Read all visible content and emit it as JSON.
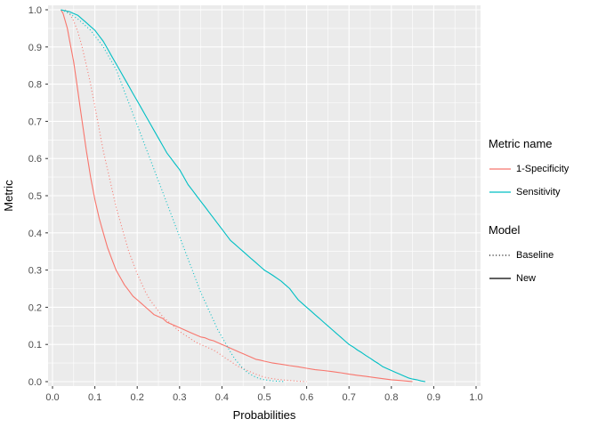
{
  "chart_data": {
    "type": "line",
    "title": "",
    "xlabel": "Probabilities",
    "ylabel": "Metric",
    "xlim": [
      0.0,
      1.0
    ],
    "ylim": [
      0.0,
      1.0
    ],
    "x_ticks": [
      "0.0",
      "0.1",
      "0.2",
      "0.3",
      "0.4",
      "0.5",
      "0.6",
      "0.7",
      "0.8",
      "0.9",
      "1.0"
    ],
    "y_ticks": [
      "0.0",
      "0.1",
      "0.2",
      "0.3",
      "0.4",
      "0.5",
      "0.6",
      "0.7",
      "0.8",
      "0.9",
      "1.0"
    ],
    "minor_ticks": [
      0.05,
      0.15,
      0.25,
      0.35,
      0.45,
      0.55,
      0.65,
      0.75,
      0.85,
      0.95
    ],
    "grid": true,
    "panel_bg": "#EBEBEB",
    "grid_color": "#FFFFFF",
    "tick_label_color": "#4D4D4D",
    "tick_mark_color": "#333333",
    "legend": {
      "position": "right",
      "groups": [
        {
          "title": "Metric name",
          "entries": [
            {
              "label": "1-Specificity",
              "color": "#F8766D",
              "dash": "solid",
              "dash_array": "none"
            },
            {
              "label": "Sensitivity",
              "color": "#00BFC4",
              "dash": "solid",
              "dash_array": "none"
            }
          ]
        },
        {
          "title": "Model",
          "entries": [
            {
              "label": "Baseline",
              "color": "#000000",
              "dash": "dotted",
              "dash_array": "1,2.6"
            },
            {
              "label": "New",
              "color": "#000000",
              "dash": "solid",
              "dash_array": "none"
            }
          ]
        }
      ]
    },
    "series": [
      {
        "name": "1-Specificity-New",
        "metric": "1-Specificity",
        "model": "New",
        "color": "#F8766D",
        "dash": "solid",
        "points": [
          [
            0.02,
            1.0
          ],
          [
            0.025,
            0.99
          ],
          [
            0.03,
            0.97
          ],
          [
            0.035,
            0.95
          ],
          [
            0.04,
            0.92
          ],
          [
            0.045,
            0.89
          ],
          [
            0.05,
            0.86
          ],
          [
            0.055,
            0.82
          ],
          [
            0.06,
            0.78
          ],
          [
            0.065,
            0.74
          ],
          [
            0.07,
            0.7
          ],
          [
            0.075,
            0.66
          ],
          [
            0.08,
            0.62
          ],
          [
            0.085,
            0.585
          ],
          [
            0.09,
            0.55
          ],
          [
            0.095,
            0.52
          ],
          [
            0.1,
            0.49
          ],
          [
            0.105,
            0.465
          ],
          [
            0.11,
            0.44
          ],
          [
            0.115,
            0.42
          ],
          [
            0.12,
            0.4
          ],
          [
            0.125,
            0.38
          ],
          [
            0.13,
            0.36
          ],
          [
            0.135,
            0.345
          ],
          [
            0.14,
            0.33
          ],
          [
            0.15,
            0.3
          ],
          [
            0.16,
            0.28
          ],
          [
            0.17,
            0.26
          ],
          [
            0.18,
            0.245
          ],
          [
            0.19,
            0.23
          ],
          [
            0.2,
            0.22
          ],
          [
            0.21,
            0.21
          ],
          [
            0.22,
            0.2
          ],
          [
            0.23,
            0.19
          ],
          [
            0.24,
            0.18
          ],
          [
            0.25,
            0.175
          ],
          [
            0.26,
            0.17
          ],
          [
            0.27,
            0.16
          ],
          [
            0.28,
            0.155
          ],
          [
            0.29,
            0.15
          ],
          [
            0.3,
            0.145
          ],
          [
            0.31,
            0.14
          ],
          [
            0.32,
            0.135
          ],
          [
            0.33,
            0.13
          ],
          [
            0.34,
            0.125
          ],
          [
            0.35,
            0.12
          ],
          [
            0.36,
            0.118
          ],
          [
            0.37,
            0.113
          ],
          [
            0.38,
            0.11
          ],
          [
            0.39,
            0.105
          ],
          [
            0.4,
            0.1
          ],
          [
            0.41,
            0.095
          ],
          [
            0.42,
            0.09
          ],
          [
            0.43,
            0.085
          ],
          [
            0.44,
            0.08
          ],
          [
            0.45,
            0.075
          ],
          [
            0.46,
            0.07
          ],
          [
            0.47,
            0.065
          ],
          [
            0.48,
            0.06
          ],
          [
            0.49,
            0.058
          ],
          [
            0.5,
            0.055
          ],
          [
            0.52,
            0.05
          ],
          [
            0.54,
            0.047
          ],
          [
            0.56,
            0.043
          ],
          [
            0.58,
            0.04
          ],
          [
            0.6,
            0.036
          ],
          [
            0.62,
            0.032
          ],
          [
            0.64,
            0.03
          ],
          [
            0.66,
            0.027
          ],
          [
            0.68,
            0.024
          ],
          [
            0.7,
            0.02
          ],
          [
            0.72,
            0.017
          ],
          [
            0.74,
            0.014
          ],
          [
            0.76,
            0.011
          ],
          [
            0.78,
            0.008
          ],
          [
            0.8,
            0.005
          ],
          [
            0.82,
            0.003
          ],
          [
            0.84,
            0.001
          ],
          [
            0.85,
            0.0
          ]
        ]
      },
      {
        "name": "1-Specificity-Baseline",
        "metric": "1-Specificity",
        "model": "Baseline",
        "color": "#F8766D",
        "dash": "dotted",
        "points": [
          [
            0.03,
            1.0
          ],
          [
            0.04,
            0.99
          ],
          [
            0.05,
            0.97
          ],
          [
            0.06,
            0.94
          ],
          [
            0.07,
            0.9
          ],
          [
            0.075,
            0.875
          ],
          [
            0.08,
            0.85
          ],
          [
            0.085,
            0.825
          ],
          [
            0.09,
            0.8
          ],
          [
            0.095,
            0.77
          ],
          [
            0.1,
            0.74
          ],
          [
            0.105,
            0.71
          ],
          [
            0.11,
            0.68
          ],
          [
            0.115,
            0.65
          ],
          [
            0.12,
            0.62
          ],
          [
            0.125,
            0.595
          ],
          [
            0.13,
            0.57
          ],
          [
            0.135,
            0.545
          ],
          [
            0.14,
            0.52
          ],
          [
            0.145,
            0.495
          ],
          [
            0.15,
            0.47
          ],
          [
            0.155,
            0.45
          ],
          [
            0.16,
            0.43
          ],
          [
            0.165,
            0.41
          ],
          [
            0.17,
            0.39
          ],
          [
            0.175,
            0.37
          ],
          [
            0.18,
            0.35
          ],
          [
            0.185,
            0.335
          ],
          [
            0.19,
            0.32
          ],
          [
            0.195,
            0.305
          ],
          [
            0.2,
            0.29
          ],
          [
            0.21,
            0.265
          ],
          [
            0.22,
            0.24
          ],
          [
            0.23,
            0.22
          ],
          [
            0.24,
            0.205
          ],
          [
            0.25,
            0.19
          ],
          [
            0.26,
            0.175
          ],
          [
            0.27,
            0.165
          ],
          [
            0.28,
            0.155
          ],
          [
            0.29,
            0.145
          ],
          [
            0.3,
            0.135
          ],
          [
            0.31,
            0.127
          ],
          [
            0.32,
            0.12
          ],
          [
            0.33,
            0.112
          ],
          [
            0.34,
            0.105
          ],
          [
            0.35,
            0.1
          ],
          [
            0.36,
            0.095
          ],
          [
            0.37,
            0.09
          ],
          [
            0.38,
            0.085
          ],
          [
            0.39,
            0.078
          ],
          [
            0.4,
            0.07
          ],
          [
            0.41,
            0.062
          ],
          [
            0.42,
            0.055
          ],
          [
            0.43,
            0.047
          ],
          [
            0.44,
            0.04
          ],
          [
            0.45,
            0.035
          ],
          [
            0.46,
            0.03
          ],
          [
            0.47,
            0.025
          ],
          [
            0.48,
            0.02
          ],
          [
            0.49,
            0.016
          ],
          [
            0.5,
            0.012
          ],
          [
            0.52,
            0.008
          ],
          [
            0.54,
            0.005
          ],
          [
            0.56,
            0.003
          ],
          [
            0.58,
            0.001
          ],
          [
            0.6,
            0.0
          ]
        ]
      },
      {
        "name": "Sensitivity-New",
        "metric": "Sensitivity",
        "model": "New",
        "color": "#00BFC4",
        "dash": "solid",
        "points": [
          [
            0.02,
            1.0
          ],
          [
            0.04,
            0.995
          ],
          [
            0.05,
            0.99
          ],
          [
            0.06,
            0.985
          ],
          [
            0.07,
            0.975
          ],
          [
            0.08,
            0.965
          ],
          [
            0.09,
            0.955
          ],
          [
            0.1,
            0.945
          ],
          [
            0.11,
            0.93
          ],
          [
            0.12,
            0.915
          ],
          [
            0.13,
            0.895
          ],
          [
            0.14,
            0.875
          ],
          [
            0.15,
            0.855
          ],
          [
            0.16,
            0.835
          ],
          [
            0.17,
            0.815
          ],
          [
            0.18,
            0.795
          ],
          [
            0.19,
            0.775
          ],
          [
            0.2,
            0.755
          ],
          [
            0.21,
            0.735
          ],
          [
            0.22,
            0.715
          ],
          [
            0.23,
            0.695
          ],
          [
            0.24,
            0.675
          ],
          [
            0.25,
            0.655
          ],
          [
            0.26,
            0.635
          ],
          [
            0.27,
            0.615
          ],
          [
            0.28,
            0.6
          ],
          [
            0.29,
            0.585
          ],
          [
            0.3,
            0.57
          ],
          [
            0.31,
            0.55
          ],
          [
            0.32,
            0.53
          ],
          [
            0.33,
            0.515
          ],
          [
            0.34,
            0.5
          ],
          [
            0.35,
            0.485
          ],
          [
            0.36,
            0.47
          ],
          [
            0.37,
            0.455
          ],
          [
            0.38,
            0.44
          ],
          [
            0.39,
            0.425
          ],
          [
            0.4,
            0.41
          ],
          [
            0.41,
            0.395
          ],
          [
            0.42,
            0.38
          ],
          [
            0.43,
            0.37
          ],
          [
            0.44,
            0.36
          ],
          [
            0.45,
            0.35
          ],
          [
            0.46,
            0.34
          ],
          [
            0.47,
            0.33
          ],
          [
            0.48,
            0.32
          ],
          [
            0.49,
            0.31
          ],
          [
            0.5,
            0.3
          ],
          [
            0.51,
            0.293
          ],
          [
            0.52,
            0.286
          ],
          [
            0.53,
            0.278
          ],
          [
            0.54,
            0.27
          ],
          [
            0.55,
            0.26
          ],
          [
            0.56,
            0.25
          ],
          [
            0.57,
            0.235
          ],
          [
            0.58,
            0.22
          ],
          [
            0.59,
            0.21
          ],
          [
            0.6,
            0.2
          ],
          [
            0.61,
            0.19
          ],
          [
            0.62,
            0.18
          ],
          [
            0.63,
            0.17
          ],
          [
            0.64,
            0.16
          ],
          [
            0.65,
            0.15
          ],
          [
            0.66,
            0.14
          ],
          [
            0.67,
            0.13
          ],
          [
            0.68,
            0.12
          ],
          [
            0.69,
            0.11
          ],
          [
            0.7,
            0.1
          ],
          [
            0.71,
            0.093
          ],
          [
            0.72,
            0.085
          ],
          [
            0.73,
            0.078
          ],
          [
            0.74,
            0.07
          ],
          [
            0.75,
            0.063
          ],
          [
            0.76,
            0.055
          ],
          [
            0.77,
            0.048
          ],
          [
            0.78,
            0.04
          ],
          [
            0.79,
            0.035
          ],
          [
            0.8,
            0.03
          ],
          [
            0.81,
            0.025
          ],
          [
            0.82,
            0.02
          ],
          [
            0.83,
            0.015
          ],
          [
            0.84,
            0.01
          ],
          [
            0.85,
            0.007
          ],
          [
            0.86,
            0.005
          ],
          [
            0.87,
            0.002
          ],
          [
            0.88,
            0.0
          ]
        ]
      },
      {
        "name": "Sensitivity-Baseline",
        "metric": "Sensitivity",
        "model": "Baseline",
        "color": "#00BFC4",
        "dash": "dotted",
        "points": [
          [
            0.02,
            1.0
          ],
          [
            0.04,
            0.99
          ],
          [
            0.06,
            0.975
          ],
          [
            0.08,
            0.955
          ],
          [
            0.09,
            0.945
          ],
          [
            0.1,
            0.93
          ],
          [
            0.11,
            0.915
          ],
          [
            0.12,
            0.9
          ],
          [
            0.13,
            0.88
          ],
          [
            0.14,
            0.86
          ],
          [
            0.15,
            0.84
          ],
          [
            0.16,
            0.81
          ],
          [
            0.17,
            0.78
          ],
          [
            0.18,
            0.75
          ],
          [
            0.19,
            0.72
          ],
          [
            0.2,
            0.69
          ],
          [
            0.21,
            0.66
          ],
          [
            0.22,
            0.63
          ],
          [
            0.23,
            0.6
          ],
          [
            0.24,
            0.57
          ],
          [
            0.25,
            0.54
          ],
          [
            0.26,
            0.51
          ],
          [
            0.27,
            0.48
          ],
          [
            0.28,
            0.45
          ],
          [
            0.29,
            0.42
          ],
          [
            0.3,
            0.39
          ],
          [
            0.31,
            0.36
          ],
          [
            0.32,
            0.33
          ],
          [
            0.33,
            0.3
          ],
          [
            0.34,
            0.27
          ],
          [
            0.35,
            0.24
          ],
          [
            0.36,
            0.215
          ],
          [
            0.37,
            0.19
          ],
          [
            0.38,
            0.165
          ],
          [
            0.39,
            0.14
          ],
          [
            0.4,
            0.12
          ],
          [
            0.41,
            0.1
          ],
          [
            0.42,
            0.08
          ],
          [
            0.43,
            0.062
          ],
          [
            0.44,
            0.048
          ],
          [
            0.45,
            0.035
          ],
          [
            0.46,
            0.025
          ],
          [
            0.47,
            0.018
          ],
          [
            0.48,
            0.012
          ],
          [
            0.49,
            0.008
          ],
          [
            0.5,
            0.005
          ],
          [
            0.52,
            0.002
          ],
          [
            0.55,
            0.0
          ]
        ]
      }
    ]
  }
}
